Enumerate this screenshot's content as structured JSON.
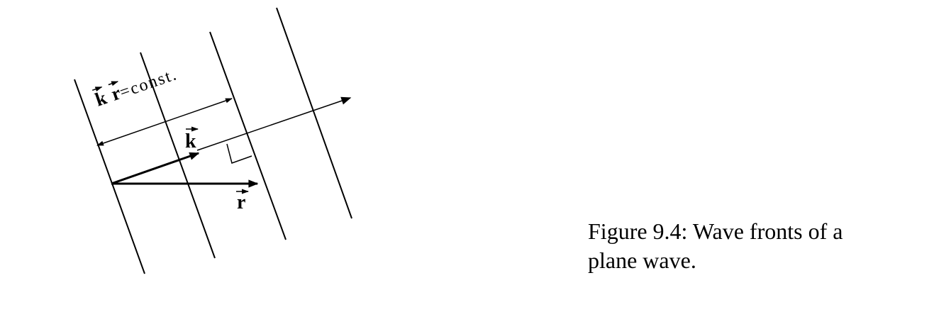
{
  "diagram": {
    "label_const_k": "k",
    "label_const_r": "r",
    "label_const_text": "=const.",
    "label_k": "k",
    "label_r": "r"
  },
  "caption": {
    "text": "Figure 9.4: Wave fronts of a plane wave."
  }
}
